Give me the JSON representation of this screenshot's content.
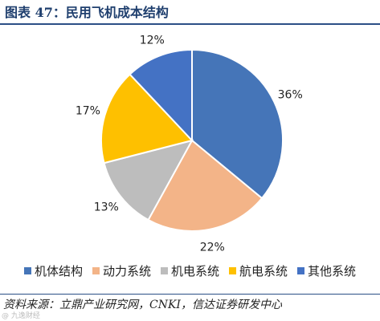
{
  "header": {
    "title": "图表 47：民用飞机成本结构"
  },
  "chart_data": {
    "type": "pie",
    "title": "",
    "categories": [
      "机体结构",
      "动力系统",
      "机电系统",
      "航电系统",
      "其他系统"
    ],
    "values": [
      36,
      22,
      13,
      17,
      12
    ],
    "labels": [
      "36%",
      "22%",
      "13%",
      "17%",
      "12%"
    ],
    "colors": [
      "#4575b8",
      "#f3b488",
      "#bdbdbd",
      "#fec000",
      "#4472c4"
    ],
    "legend_position": "bottom"
  },
  "footer": {
    "source": "资料来源：立鼎产业研究网，CNKI，信达证券研发中心",
    "watermark": "@ 九逸财经"
  }
}
